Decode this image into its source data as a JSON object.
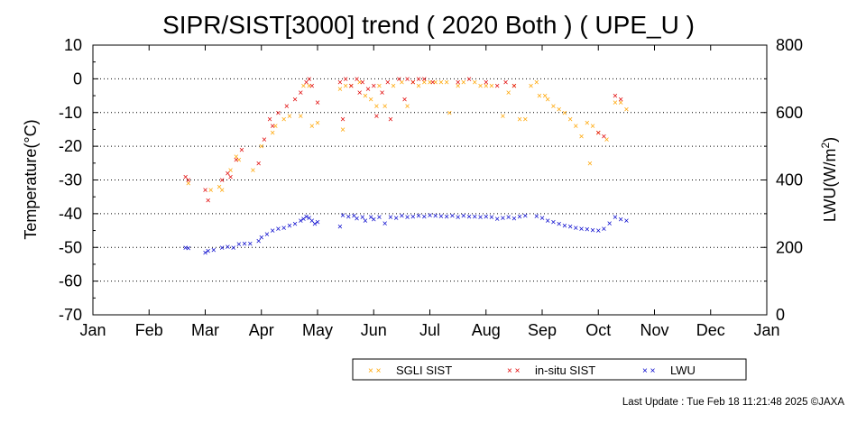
{
  "chart_data": {
    "type": "scatter",
    "title": "SIPR/SIST[3000] trend ( 2020 Both ) ( UPE_U )",
    "ylabel_left": "Temperature(°C)",
    "ylabel_right_base": "LWU(W/m",
    "ylabel_right_sup": "2",
    "ylabel_right_close": ")",
    "ylim_left": [
      -70,
      10
    ],
    "ylim_right": [
      0,
      800
    ],
    "y_left_ticks": [
      10,
      0,
      -10,
      -20,
      -30,
      -40,
      -50,
      -60,
      -70
    ],
    "y_right_ticks": [
      800,
      600,
      400,
      200,
      0
    ],
    "x_unit": "month of 2020",
    "xlim": [
      0,
      12
    ],
    "x_ticks": [
      "Jan",
      "Feb",
      "Mar",
      "Apr",
      "May",
      "Jun",
      "Jul",
      "Aug",
      "Sep",
      "Oct",
      "Nov",
      "Dec",
      "Jan"
    ],
    "grid": "horizontal dotted lines",
    "legend_placement": "bottom-right",
    "marker": "×",
    "series": [
      {
        "name": "SGLI SIST",
        "axis": "left",
        "color": "#ffa500",
        "points": [
          [
            1.7,
            -31
          ],
          [
            2.1,
            -33
          ],
          [
            2.25,
            -32
          ],
          [
            2.3,
            -33
          ],
          [
            2.45,
            -27
          ],
          [
            2.55,
            -23
          ],
          [
            2.6,
            -24
          ],
          [
            2.85,
            -27
          ],
          [
            3.0,
            -20
          ],
          [
            3.2,
            -16
          ],
          [
            3.25,
            -14
          ],
          [
            3.4,
            -12
          ],
          [
            3.5,
            -11
          ],
          [
            3.7,
            -11
          ],
          [
            3.75,
            -2
          ],
          [
            3.85,
            -2
          ],
          [
            3.9,
            -14
          ],
          [
            4.0,
            -13
          ],
          [
            4.4,
            -3
          ],
          [
            4.45,
            -15
          ],
          [
            4.5,
            -2
          ],
          [
            4.6,
            -2
          ],
          [
            4.75,
            -1
          ],
          [
            4.85,
            -5
          ],
          [
            4.95,
            -6
          ],
          [
            5.05,
            -8
          ],
          [
            5.1,
            -2
          ],
          [
            5.2,
            -8
          ],
          [
            5.35,
            -2
          ],
          [
            5.5,
            -1
          ],
          [
            5.6,
            -8
          ],
          [
            5.7,
            -1
          ],
          [
            5.8,
            -2
          ],
          [
            5.9,
            -1
          ],
          [
            6.0,
            -1
          ],
          [
            6.1,
            -1
          ],
          [
            6.2,
            -1
          ],
          [
            6.3,
            -1
          ],
          [
            6.35,
            -10
          ],
          [
            6.5,
            -2
          ],
          [
            6.6,
            -1
          ],
          [
            6.8,
            -1
          ],
          [
            6.9,
            -2
          ],
          [
            7.0,
            -2
          ],
          [
            7.1,
            -2
          ],
          [
            7.3,
            -11
          ],
          [
            7.4,
            -4
          ],
          [
            7.5,
            -2
          ],
          [
            7.6,
            -12
          ],
          [
            7.7,
            -12
          ],
          [
            7.8,
            -2
          ],
          [
            7.9,
            -1
          ],
          [
            7.95,
            -5
          ],
          [
            8.05,
            -5
          ],
          [
            8.1,
            -6
          ],
          [
            8.2,
            -8
          ],
          [
            8.3,
            -9
          ],
          [
            8.4,
            -10
          ],
          [
            8.5,
            -12
          ],
          [
            8.6,
            -14
          ],
          [
            8.7,
            -17
          ],
          [
            8.8,
            -13
          ],
          [
            8.85,
            -25
          ],
          [
            8.9,
            -14
          ],
          [
            9.0,
            -16
          ],
          [
            9.15,
            -18
          ],
          [
            9.3,
            -7
          ],
          [
            9.4,
            -7
          ],
          [
            9.5,
            -9
          ]
        ]
      },
      {
        "name": "in-situ SIST",
        "axis": "left",
        "color": "#e00000",
        "points": [
          [
            1.65,
            -29
          ],
          [
            1.7,
            -30
          ],
          [
            2.0,
            -33
          ],
          [
            2.05,
            -36
          ],
          [
            2.3,
            -30
          ],
          [
            2.4,
            -28
          ],
          [
            2.45,
            -29
          ],
          [
            2.55,
            -24
          ],
          [
            2.65,
            -21
          ],
          [
            2.95,
            -25
          ],
          [
            3.05,
            -18
          ],
          [
            3.15,
            -12
          ],
          [
            3.2,
            -14
          ],
          [
            3.3,
            -10
          ],
          [
            3.45,
            -8
          ],
          [
            3.6,
            -6
          ],
          [
            3.7,
            -4
          ],
          [
            3.8,
            -1
          ],
          [
            3.85,
            0
          ],
          [
            3.9,
            -2
          ],
          [
            4.0,
            -7
          ],
          [
            4.4,
            -1
          ],
          [
            4.45,
            -12
          ],
          [
            4.5,
            0
          ],
          [
            4.6,
            -2
          ],
          [
            4.7,
            0
          ],
          [
            4.75,
            -4
          ],
          [
            4.8,
            -1
          ],
          [
            4.9,
            -3
          ],
          [
            5.0,
            -2
          ],
          [
            5.05,
            -11
          ],
          [
            5.15,
            -4
          ],
          [
            5.25,
            -1
          ],
          [
            5.3,
            -12
          ],
          [
            5.45,
            0
          ],
          [
            5.55,
            -6
          ],
          [
            5.6,
            0
          ],
          [
            5.7,
            -1
          ],
          [
            5.8,
            0
          ],
          [
            5.9,
            0
          ],
          [
            6.05,
            -1
          ],
          [
            6.5,
            -1
          ],
          [
            6.7,
            0
          ],
          [
            7.0,
            -1
          ],
          [
            7.2,
            -2
          ],
          [
            7.35,
            -1
          ],
          [
            7.5,
            -2
          ],
          [
            9.0,
            -16
          ],
          [
            9.1,
            -17
          ],
          [
            9.3,
            -5
          ],
          [
            9.4,
            -6
          ]
        ]
      },
      {
        "name": "LWU",
        "axis": "right",
        "color": "#0000cc",
        "points": [
          [
            1.65,
            200
          ],
          [
            1.7,
            198
          ],
          [
            2.0,
            185
          ],
          [
            2.05,
            190
          ],
          [
            2.15,
            192
          ],
          [
            2.3,
            200
          ],
          [
            2.4,
            202
          ],
          [
            2.5,
            200
          ],
          [
            2.6,
            210
          ],
          [
            2.7,
            212
          ],
          [
            2.8,
            212
          ],
          [
            2.95,
            220
          ],
          [
            3.0,
            230
          ],
          [
            3.1,
            240
          ],
          [
            3.2,
            250
          ],
          [
            3.3,
            255
          ],
          [
            3.4,
            258
          ],
          [
            3.5,
            265
          ],
          [
            3.6,
            270
          ],
          [
            3.7,
            280
          ],
          [
            3.75,
            285
          ],
          [
            3.8,
            292
          ],
          [
            3.85,
            288
          ],
          [
            3.9,
            280
          ],
          [
            3.95,
            270
          ],
          [
            4.0,
            275
          ],
          [
            4.4,
            262
          ],
          [
            4.45,
            296
          ],
          [
            4.55,
            292
          ],
          [
            4.65,
            294
          ],
          [
            4.7,
            286
          ],
          [
            4.8,
            290
          ],
          [
            4.85,
            280
          ],
          [
            4.95,
            290
          ],
          [
            5.0,
            283
          ],
          [
            5.1,
            290
          ],
          [
            5.2,
            272
          ],
          [
            5.3,
            290
          ],
          [
            5.4,
            288
          ],
          [
            5.5,
            294
          ],
          [
            5.6,
            290
          ],
          [
            5.7,
            292
          ],
          [
            5.8,
            294
          ],
          [
            5.9,
            292
          ],
          [
            6.0,
            295
          ],
          [
            6.1,
            294
          ],
          [
            6.2,
            293
          ],
          [
            6.3,
            292
          ],
          [
            6.4,
            294
          ],
          [
            6.5,
            290
          ],
          [
            6.6,
            294
          ],
          [
            6.7,
            292
          ],
          [
            6.8,
            292
          ],
          [
            6.9,
            290
          ],
          [
            7.0,
            292
          ],
          [
            7.1,
            290
          ],
          [
            7.2,
            285
          ],
          [
            7.3,
            288
          ],
          [
            7.4,
            290
          ],
          [
            7.5,
            286
          ],
          [
            7.6,
            292
          ],
          [
            7.7,
            294
          ],
          [
            7.9,
            293
          ],
          [
            8.0,
            288
          ],
          [
            8.1,
            280
          ],
          [
            8.2,
            275
          ],
          [
            8.3,
            270
          ],
          [
            8.4,
            265
          ],
          [
            8.5,
            262
          ],
          [
            8.6,
            258
          ],
          [
            8.7,
            255
          ],
          [
            8.8,
            254
          ],
          [
            8.9,
            252
          ],
          [
            9.0,
            250
          ],
          [
            9.1,
            255
          ],
          [
            9.2,
            272
          ],
          [
            9.3,
            290
          ],
          [
            9.4,
            283
          ],
          [
            9.5,
            280
          ]
        ]
      }
    ]
  },
  "legend": {
    "items": [
      {
        "label": "SGLI SIST",
        "color": "#ffa500"
      },
      {
        "label": "in-situ SIST",
        "color": "#e00000"
      },
      {
        "label": "LWU",
        "color": "#0000cc"
      }
    ]
  },
  "footer": {
    "last_update": "Last Update : Tue Feb 18 11:21:48 2025  ©JAXA"
  }
}
